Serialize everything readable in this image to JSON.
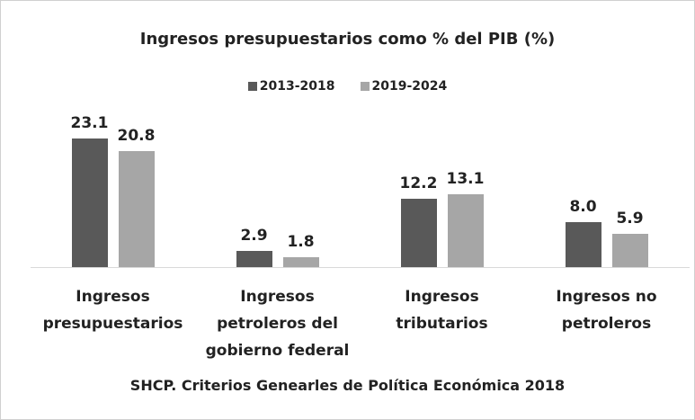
{
  "chart_data": {
    "type": "bar",
    "title": "Ingresos presupuestarios  como % del PIB (%)",
    "categories": [
      "Ingresos\npresupuestarios",
      "Ingresos\npetroleros del\ngobierno federal",
      "Ingresos\ntributarios",
      "Ingresos no\npetroleros"
    ],
    "series": [
      {
        "name": "2013-2018",
        "color": "#595959",
        "values": [
          23.1,
          2.9,
          12.2,
          8.0
        ],
        "value_labels": [
          "23.1",
          "2.9",
          "12.2",
          "8.0"
        ]
      },
      {
        "name": "2019-2024",
        "color": "#a6a6a6",
        "values": [
          20.8,
          1.8,
          13.1,
          5.9
        ],
        "value_labels": [
          "20.8",
          "1.8",
          "13.1",
          "5.9"
        ]
      }
    ],
    "ylim": [
      0,
      25
    ],
    "annotation": "SHCP. Criterios Genearles de Política Económica 2018"
  }
}
